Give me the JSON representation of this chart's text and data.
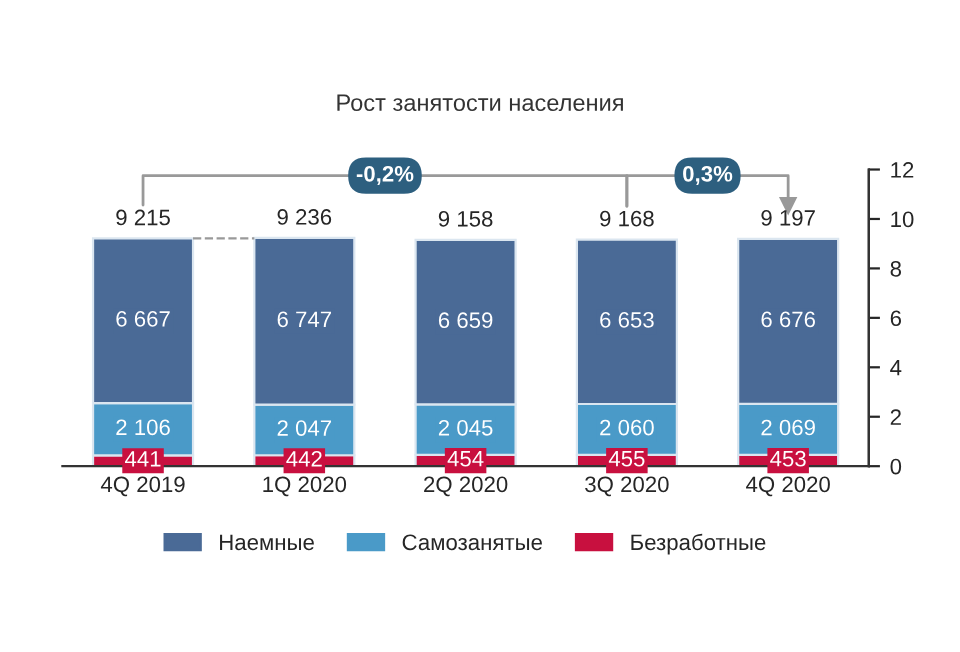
{
  "chart_data": {
    "type": "bar",
    "title": "Рост занятости населения",
    "categories": [
      "4Q 2019",
      "1Q 2020",
      "2Q 2020",
      "3Q 2020",
      "4Q 2020"
    ],
    "stacked": true,
    "series": [
      {
        "name": "Безработные",
        "color": "#c8103f",
        "values": [
          441,
          442,
          454,
          455,
          453
        ]
      },
      {
        "name": "Самозанятые",
        "color": "#4a9ac8",
        "values": [
          2106,
          2047,
          2045,
          2060,
          2069
        ]
      },
      {
        "name": "Наемные",
        "color": "#4a6a96",
        "values": [
          6667,
          6747,
          6659,
          6653,
          6676
        ]
      }
    ],
    "data_labels": true,
    "totals": [
      "9 215",
      "9 236",
      "9 158",
      "9 168",
      "9 197"
    ],
    "annotations": [
      "-0,2%",
      "0,3%"
    ],
    "ylim": [
      0,
      12000
    ],
    "y2lim": [
      0,
      12
    ],
    "y2ticks": [
      0,
      2,
      4,
      6,
      8,
      10,
      12
    ],
    "grid": false,
    "legend": "bottom"
  }
}
